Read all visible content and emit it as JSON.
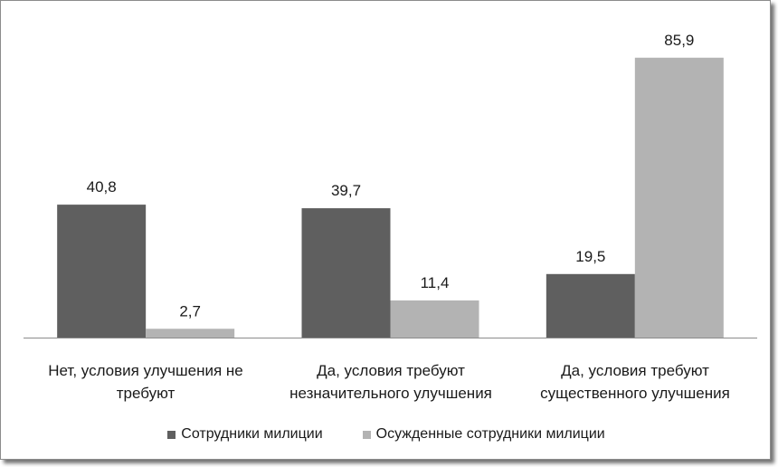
{
  "chart_data": {
    "type": "bar",
    "categories": [
      [
        "Нет, условия улучшения не",
        "требуют"
      ],
      [
        "Да, условия требуют",
        "незначительного улучшения"
      ],
      [
        "Да, условия требуют",
        "существенного улучшения"
      ]
    ],
    "series": [
      {
        "name": "Сотрудники милиции",
        "values": [
          40.8,
          39.7,
          19.5
        ],
        "labels": [
          "40,8",
          "39,7",
          "19,5"
        ],
        "color": "#5f5f5f"
      },
      {
        "name": "Осужденные сотрудники милиции",
        "values": [
          2.7,
          11.4,
          85.9
        ],
        "labels": [
          "2,7",
          "11,4",
          "85,9"
        ],
        "color": "#b3b3b3"
      }
    ],
    "ylim": [
      0,
      100
    ],
    "grid": false,
    "legend_position": "bottom"
  }
}
